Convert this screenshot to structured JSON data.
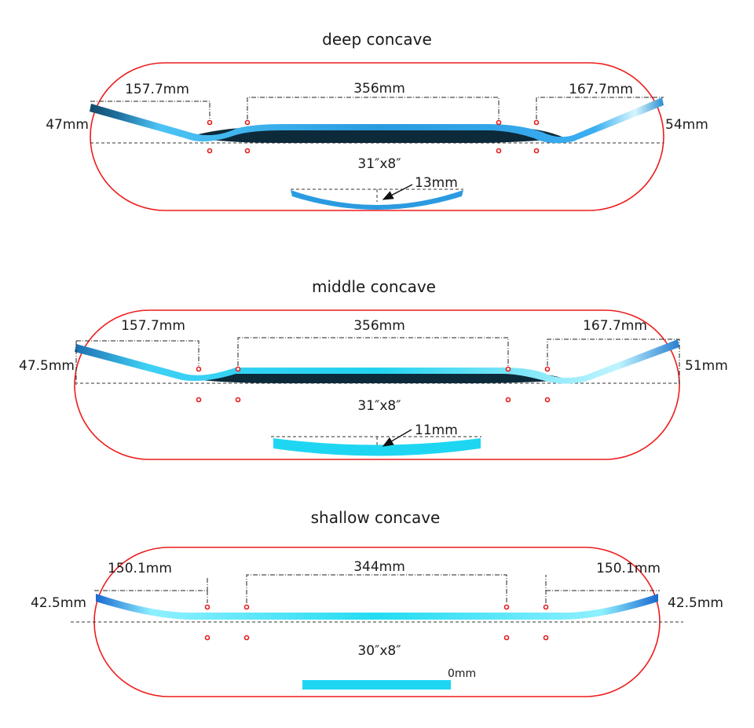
{
  "colors": {
    "outline": "#ee1c1c",
    "deck_blue": "#2a9be0",
    "deck_cyan": "#1fd6f2",
    "deck_dark": "#0d2a3a",
    "hole": "#e31b1b"
  },
  "panels": [
    {
      "title": "deep concave",
      "left_kick": "157.7mm",
      "wheelbase": "356mm",
      "right_kick": "167.7mm",
      "left_height": "47mm",
      "right_height": "54mm",
      "size": "31″x8″",
      "concave": "13mm"
    },
    {
      "title": "middle  concave",
      "left_kick": "157.7mm",
      "wheelbase": "356mm",
      "right_kick": "167.7mm",
      "left_height": "47.5mm",
      "right_height": "51mm",
      "size": "31″x8″",
      "concave": "11mm"
    },
    {
      "title": "shallow concave",
      "left_kick": "150.1mm",
      "wheelbase": "344mm",
      "right_kick": "150.1mm",
      "left_height": "42.5mm",
      "right_height": "42.5mm",
      "size": "30″x8″",
      "concave": "0mm"
    }
  ]
}
